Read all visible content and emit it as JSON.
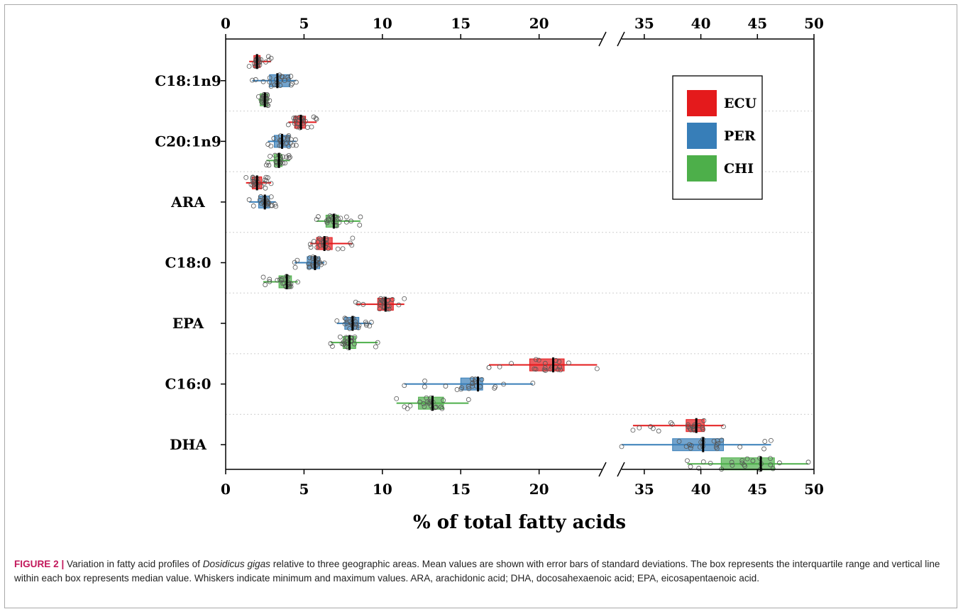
{
  "chart_data": {
    "type": "boxplot",
    "orientation": "horizontal",
    "xlabel": "% of total fatty acids",
    "xaxis_break": [
      24,
      33
    ],
    "xticks_left": [
      0,
      5,
      10,
      15,
      20
    ],
    "xticks_right": [
      35,
      40,
      45,
      50
    ],
    "categories": [
      "C18:1n9",
      "C20:1n9",
      "ARA",
      "C18:0",
      "EPA",
      "C16:0",
      "DHA"
    ],
    "series": [
      {
        "name": "ECU",
        "color": "#e41a1c"
      },
      {
        "name": "PER",
        "color": "#377eb8"
      },
      {
        "name": "CHI",
        "color": "#4daf4a"
      }
    ],
    "boxes": [
      {
        "category": "C18:1n9",
        "group": "ECU",
        "min": 1.5,
        "q1": 1.8,
        "median": 2.0,
        "q3": 2.2,
        "max": 2.9
      },
      {
        "category": "C18:1n9",
        "group": "PER",
        "min": 1.7,
        "q1": 2.8,
        "median": 3.3,
        "q3": 4.1,
        "max": 4.5
      },
      {
        "category": "C18:1n9",
        "group": "CHI",
        "min": 2.1,
        "q1": 2.2,
        "median": 2.5,
        "q3": 2.7,
        "max": 2.8
      },
      {
        "category": "C20:1n9",
        "group": "ECU",
        "min": 4.0,
        "q1": 4.4,
        "median": 4.8,
        "q3": 5.1,
        "max": 5.8
      },
      {
        "category": "C20:1n9",
        "group": "PER",
        "min": 2.7,
        "q1": 3.1,
        "median": 3.6,
        "q3": 4.1,
        "max": 4.5
      },
      {
        "category": "C20:1n9",
        "group": "CHI",
        "min": 2.6,
        "q1": 3.1,
        "median": 3.4,
        "q3": 3.6,
        "max": 4.1
      },
      {
        "category": "ARA",
        "group": "ECU",
        "min": 1.3,
        "q1": 1.7,
        "median": 2.0,
        "q3": 2.3,
        "max": 2.9
      },
      {
        "category": "ARA",
        "group": "PER",
        "min": 1.5,
        "q1": 2.1,
        "median": 2.5,
        "q3": 2.8,
        "max": 3.2
      },
      {
        "category": "ARA",
        "group": "CHI",
        "min": 5.8,
        "q1": 6.4,
        "median": 6.9,
        "q3": 7.2,
        "max": 8.6
      },
      {
        "category": "C18:0",
        "group": "ECU",
        "min": 5.4,
        "q1": 5.8,
        "median": 6.3,
        "q3": 6.8,
        "max": 8.1
      },
      {
        "category": "C18:0",
        "group": "PER",
        "min": 4.4,
        "q1": 5.2,
        "median": 5.7,
        "q3": 6.0,
        "max": 6.3
      },
      {
        "category": "C18:0",
        "group": "CHI",
        "min": 2.4,
        "q1": 3.4,
        "median": 3.9,
        "q3": 4.2,
        "max": 4.6
      },
      {
        "category": "EPA",
        "group": "ECU",
        "min": 8.3,
        "q1": 9.7,
        "median": 10.2,
        "q3": 10.7,
        "max": 11.4
      },
      {
        "category": "EPA",
        "group": "PER",
        "min": 7.1,
        "q1": 7.6,
        "median": 8.1,
        "q3": 8.5,
        "max": 9.3
      },
      {
        "category": "EPA",
        "group": "CHI",
        "min": 6.7,
        "q1": 7.5,
        "median": 7.9,
        "q3": 8.3,
        "max": 9.7
      },
      {
        "category": "C16:0",
        "group": "ECU",
        "min": 16.8,
        "q1": 19.4,
        "median": 20.9,
        "q3": 21.6,
        "max": 23.7
      },
      {
        "category": "C16:0",
        "group": "PER",
        "min": 11.4,
        "q1": 15.0,
        "median": 16.1,
        "q3": 16.4,
        "max": 19.6
      },
      {
        "category": "C16:0",
        "group": "CHI",
        "min": 10.9,
        "q1": 12.3,
        "median": 13.2,
        "q3": 13.9,
        "max": 15.5
      },
      {
        "category": "DHA",
        "group": "ECU",
        "min": 34.0,
        "q1": 38.7,
        "median": 39.6,
        "q3": 40.3,
        "max": 42.0
      },
      {
        "category": "DHA",
        "group": "PER",
        "min": 33.0,
        "q1": 37.5,
        "median": 40.2,
        "q3": 42.0,
        "max": 46.2
      },
      {
        "category": "DHA",
        "group": "CHI",
        "min": 38.8,
        "q1": 41.8,
        "median": 45.3,
        "q3": 46.5,
        "max": 49.5
      }
    ],
    "legend_position": "top-right",
    "grid": "dotted horizontal separators between categories"
  },
  "caption": {
    "figure_label": "FIGURE 2 |",
    "text_before_species": " Variation in fatty acid profiles of ",
    "species": "Dosidicus gigas",
    "text_after_species": " relative to three geographic areas. Mean values are shown with error bars of standard deviations. The box represents the interquartile range and vertical line within each box represents median value. Whiskers indicate minimum and maximum values. ARA, arachidonic acid; DHA, docosahexaenoic acid; EPA, eicosapentaenoic acid."
  }
}
